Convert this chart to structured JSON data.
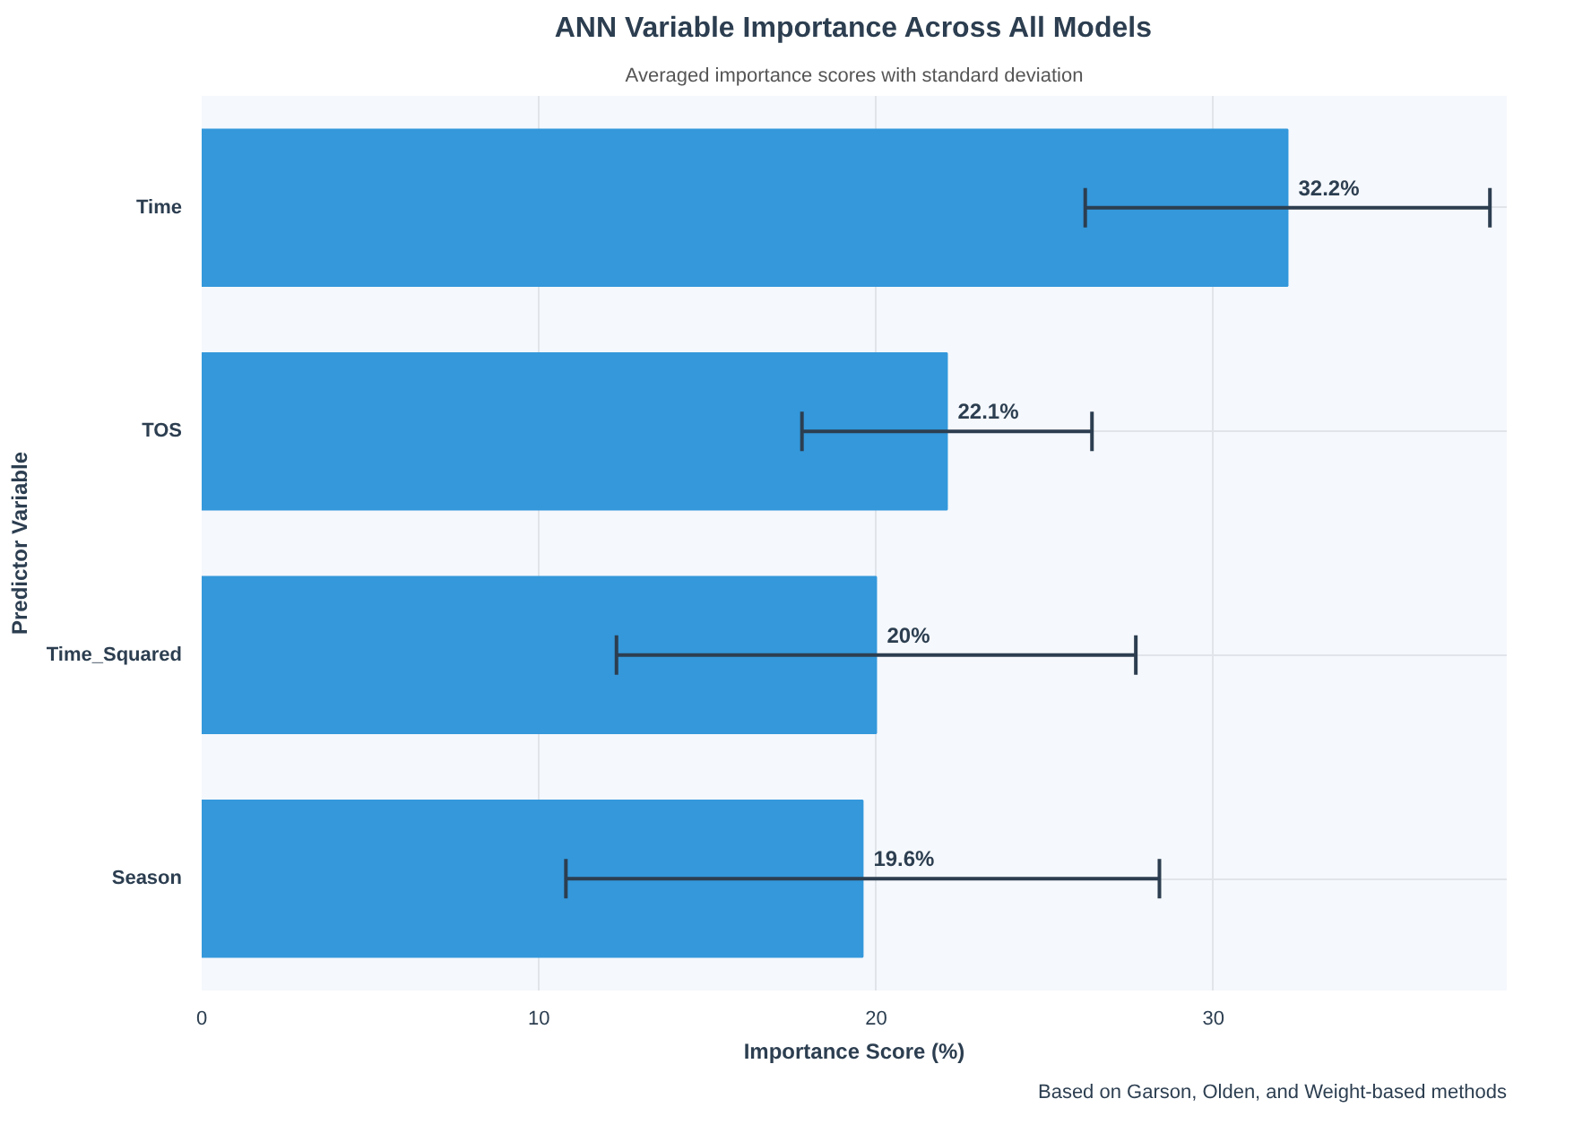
{
  "chart_data": {
    "type": "bar",
    "orientation": "horizontal",
    "title": "ANN Variable Importance Across All Models",
    "subtitle": "Averaged importance scores with standard deviation",
    "xlabel": "Importance Score (%)",
    "ylabel": "Predictor Variable",
    "categories": [
      "Time",
      "TOS",
      "Time_Squared",
      "Season"
    ],
    "values": [
      32.2,
      22.1,
      20,
      19.6
    ],
    "errors": [
      6.0,
      4.3,
      7.7,
      8.8
    ],
    "value_labels": [
      "32.2%",
      "22.1%",
      "20%",
      "19.6%"
    ],
    "color": "#3498db",
    "xlim": [
      0,
      38.7
    ],
    "xticks": [
      0,
      10,
      20,
      30
    ],
    "grid": true,
    "annotations": [
      "Based on Garson, Olden, and Weight-based methods"
    ]
  }
}
